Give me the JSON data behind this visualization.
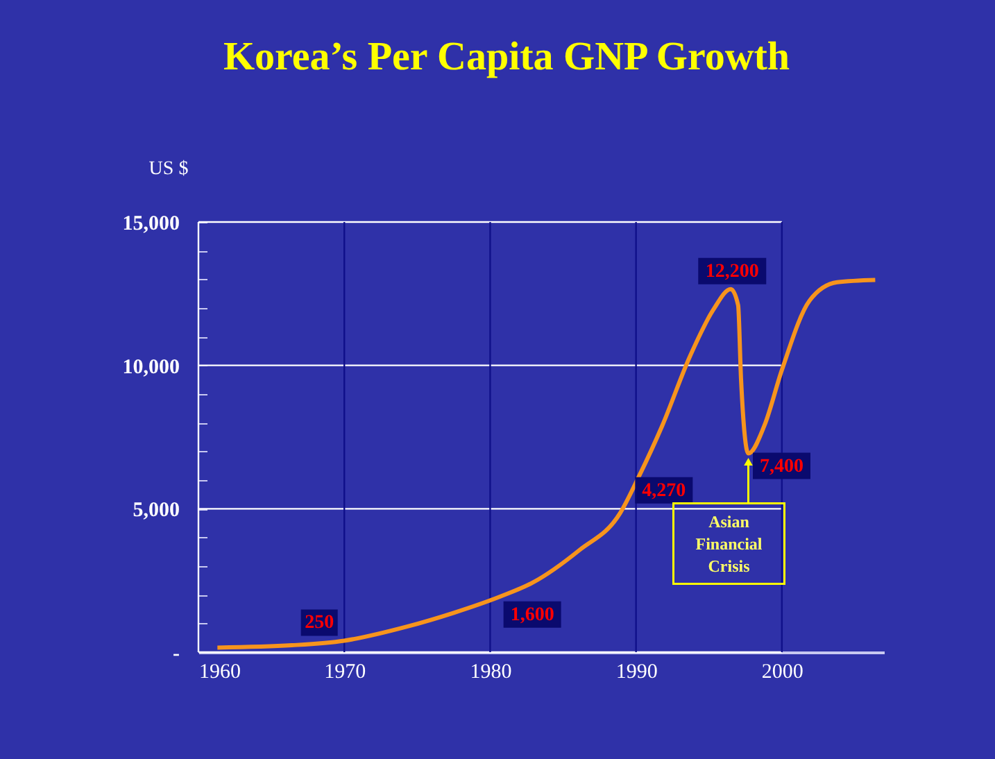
{
  "chart_data": {
    "type": "line",
    "title": "Korea’s Per Capita GNP Growth",
    "ylabel": "US $",
    "x": [
      1961.3,
      1966.4,
      1970,
      1974.3,
      1977.5,
      1980.7,
      1982.9,
      1986.1,
      1988.9,
      1990.2,
      1991.8,
      1993.7,
      1995.3,
      1996.5,
      1997.0,
      1997.2,
      1997.7,
      1998.8,
      2000.0,
      2001.9,
      2003.8,
      2006.4
    ],
    "series": [
      {
        "color": "#f7941d",
        "values": [
          160,
          240,
          400,
          890,
          1370,
          1940,
          2420,
          3550,
          4840,
          6130,
          7900,
          10320,
          11940,
          12660,
          12100,
          9520,
          6930,
          7900,
          9840,
          12260,
          12900,
          12980
        ]
      }
    ],
    "xlim": [
      1960,
      2007
    ],
    "xticks": [
      1960,
      1970,
      1980,
      1990,
      2000
    ],
    "ylim": [
      0,
      15000
    ],
    "yticks": [
      {
        "value": 0,
        "label": "-"
      },
      {
        "value": 1000,
        "label": null
      },
      {
        "value": 2000,
        "label": null
      },
      {
        "value": 3000,
        "label": null
      },
      {
        "value": 4000,
        "label": null
      },
      {
        "value": 5000,
        "label": "5,000"
      },
      {
        "value": 6000,
        "label": null
      },
      {
        "value": 7000,
        "label": null
      },
      {
        "value": 8000,
        "label": null
      },
      {
        "value": 9000,
        "label": null
      },
      {
        "value": 10000,
        "label": "10,000"
      },
      {
        "value": 11000,
        "label": null
      },
      {
        "value": 12000,
        "label": null
      },
      {
        "value": 13000,
        "label": null
      },
      {
        "value": 14000,
        "label": null
      },
      {
        "value": 15000,
        "label": "15,000"
      }
    ],
    "grid": true,
    "marker": "none",
    "line_style": "solid",
    "annotations": [
      {
        "text": "250",
        "x": 1970,
        "y": 400
      },
      {
        "text": "1,600",
        "x": 1980.7,
        "y": 1940
      },
      {
        "text": "4,270",
        "x": 1990.2,
        "y": 6130
      },
      {
        "text": "12,200",
        "x": 1996.5,
        "y": 12660
      },
      {
        "text": "7,400",
        "x": 1997.7,
        "y": 6930
      },
      {
        "text": "Asian Financial Crisis",
        "x": 1997.7,
        "y": 6930
      }
    ]
  }
}
